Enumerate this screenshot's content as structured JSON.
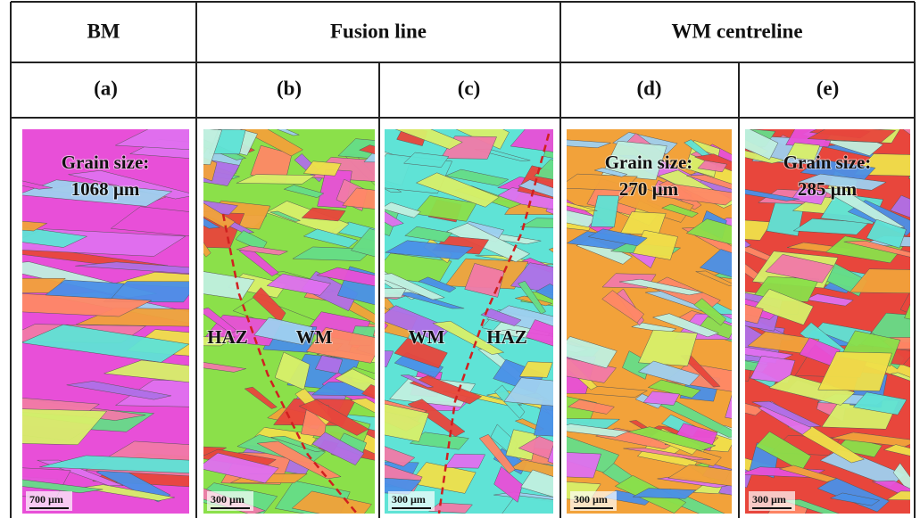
{
  "header": {
    "cells": [
      "BM",
      "Fusion line",
      "WM centreline"
    ]
  },
  "panels": [
    {
      "label": "(a)",
      "annotations": [
        "Grain size:",
        "1068 µm"
      ],
      "scale_bar": "700 µm"
    },
    {
      "label": "(b)",
      "annotations": [
        "HAZ",
        "WM"
      ],
      "scale_bar": "300 µm"
    },
    {
      "label": "(c)",
      "annotations": [
        "WM",
        "HAZ"
      ],
      "scale_bar": "300 µm"
    },
    {
      "label": "(d)",
      "annotations": [
        "Grain size:",
        "270 µm"
      ],
      "scale_bar": "300 µm"
    },
    {
      "label": "(e)",
      "annotations": [
        "Grain size:",
        "285 µm"
      ],
      "scale_bar": "300 µm"
    }
  ]
}
